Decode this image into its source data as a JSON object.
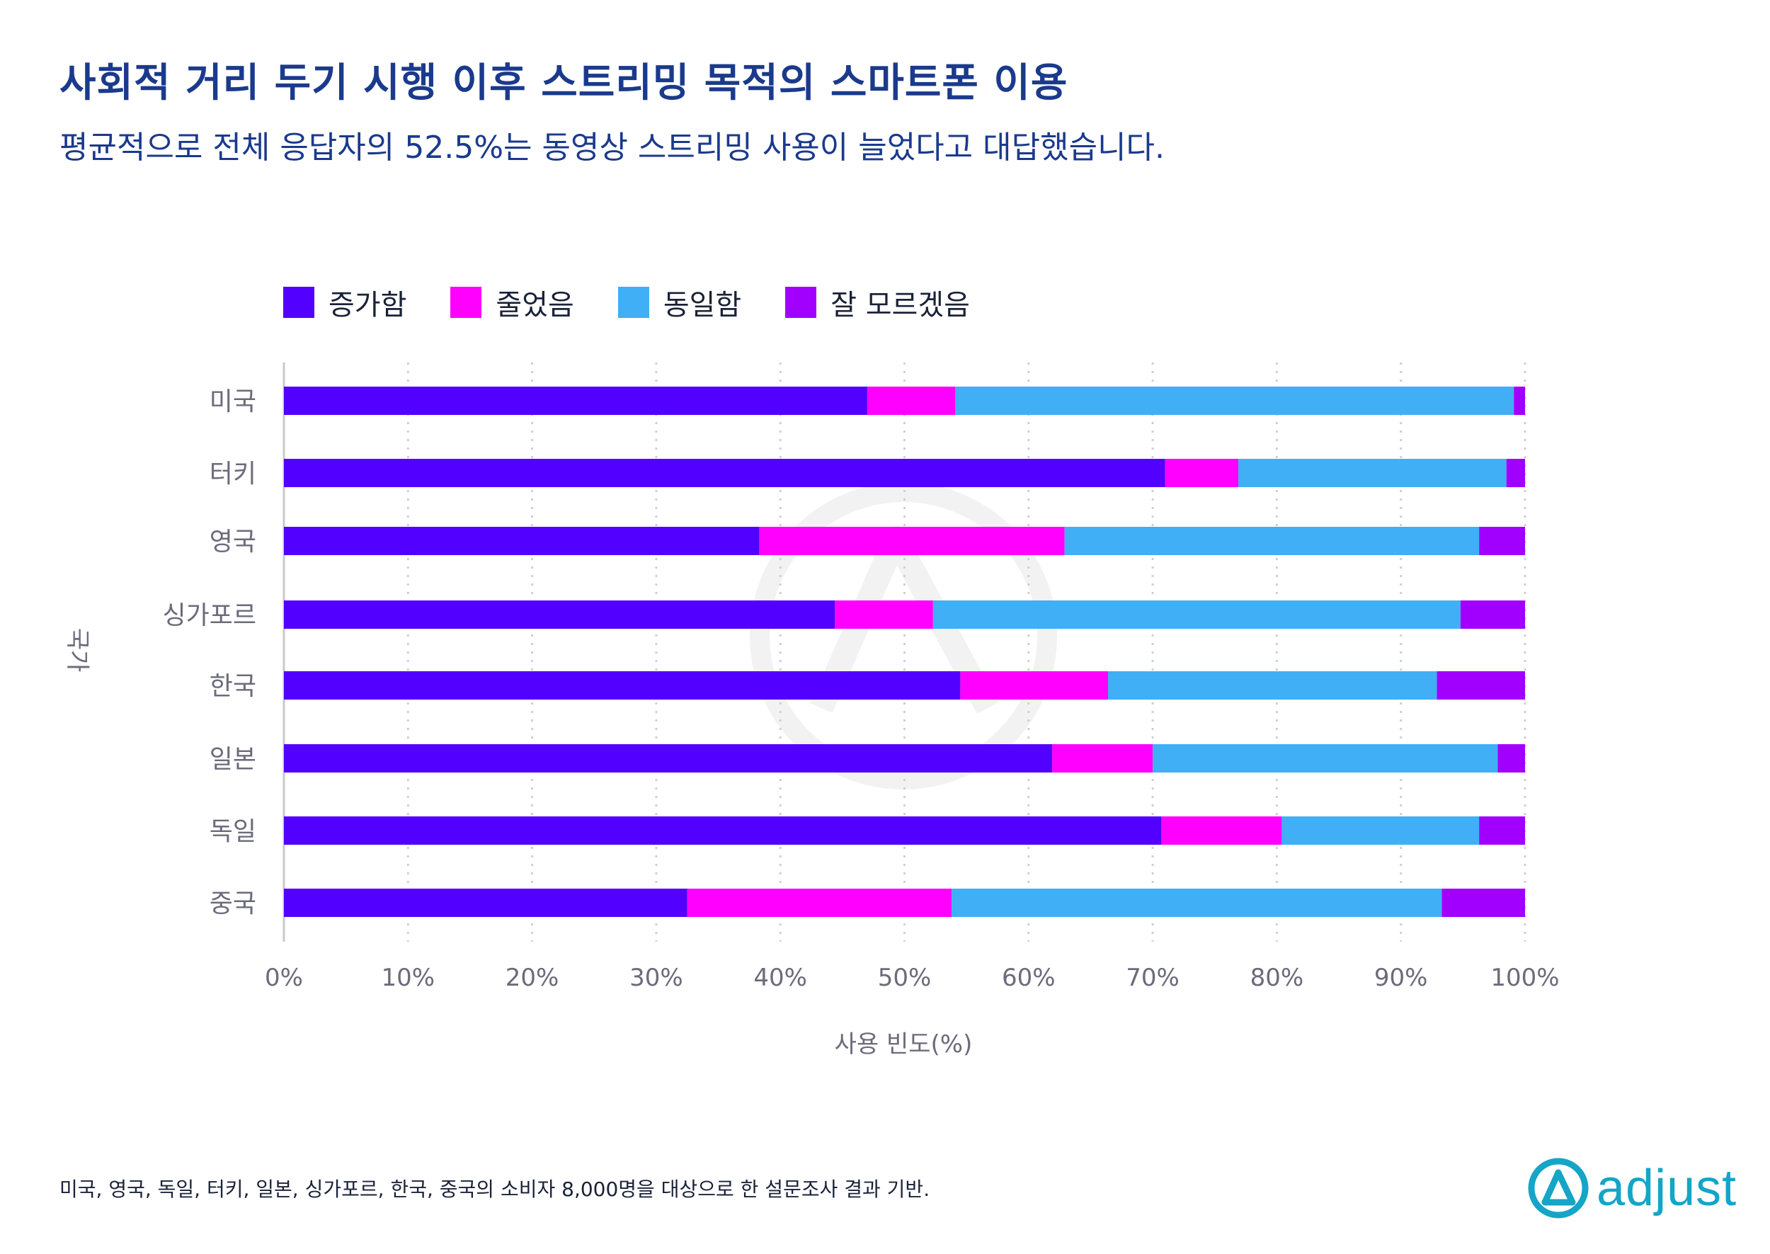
{
  "header": {
    "title": "사회적 거리 두기 시행 이후 스트리밍 목적의 스마트폰 이용",
    "subtitle": "평균적으로 전체 응답자의 52.5%는 동영상 스트리밍 사용이 늘었다고 대답했습니다."
  },
  "legend": [
    {
      "label": "증가함",
      "color": "#5200ff"
    },
    {
      "label": "줄었음",
      "color": "#ff00ff"
    },
    {
      "label": "동일함",
      "color": "#40aff5"
    },
    {
      "label": "잘 모르겠음",
      "color": "#a100ff"
    }
  ],
  "chart_data": {
    "type": "bar",
    "orientation": "horizontal",
    "stacked": true,
    "categories": [
      "미국",
      "터키",
      "영국",
      "싱가포르",
      "한국",
      "일본",
      "독일",
      "중국"
    ],
    "series": [
      {
        "name": "증가함",
        "color": "#5200ff",
        "values": [
          47.0,
          71.0,
          38.3,
          44.4,
          54.5,
          61.9,
          70.7,
          32.5
        ]
      },
      {
        "name": "줄었음",
        "color": "#ff00ff",
        "values": [
          7.1,
          5.9,
          24.6,
          7.9,
          11.9,
          8.1,
          9.7,
          21.3
        ]
      },
      {
        "name": "동일함",
        "color": "#40aff5",
        "values": [
          45.0,
          21.6,
          33.4,
          42.5,
          26.5,
          27.8,
          15.9,
          39.5
        ]
      },
      {
        "name": "잘 모르겠음",
        "color": "#a100ff",
        "values": [
          0.9,
          1.5,
          3.7,
          5.2,
          7.1,
          2.2,
          3.7,
          6.7
        ]
      }
    ],
    "xlabel": "사용 빈도(%)",
    "ylabel": "국가",
    "xlim": [
      0,
      100
    ],
    "xticks": [
      "0%",
      "10%",
      "20%",
      "30%",
      "40%",
      "50%",
      "60%",
      "70%",
      "80%",
      "90%",
      "100%"
    ],
    "grid": true,
    "legend_position": "top"
  },
  "footnote": "미국, 영국, 독일, 터키, 일본, 싱가포르, 한국, 중국의 소비자 8,000명을 대상으로 한 설문조사 결과 기반.",
  "logo": {
    "text": "adjust",
    "color": "#14a5c7"
  }
}
